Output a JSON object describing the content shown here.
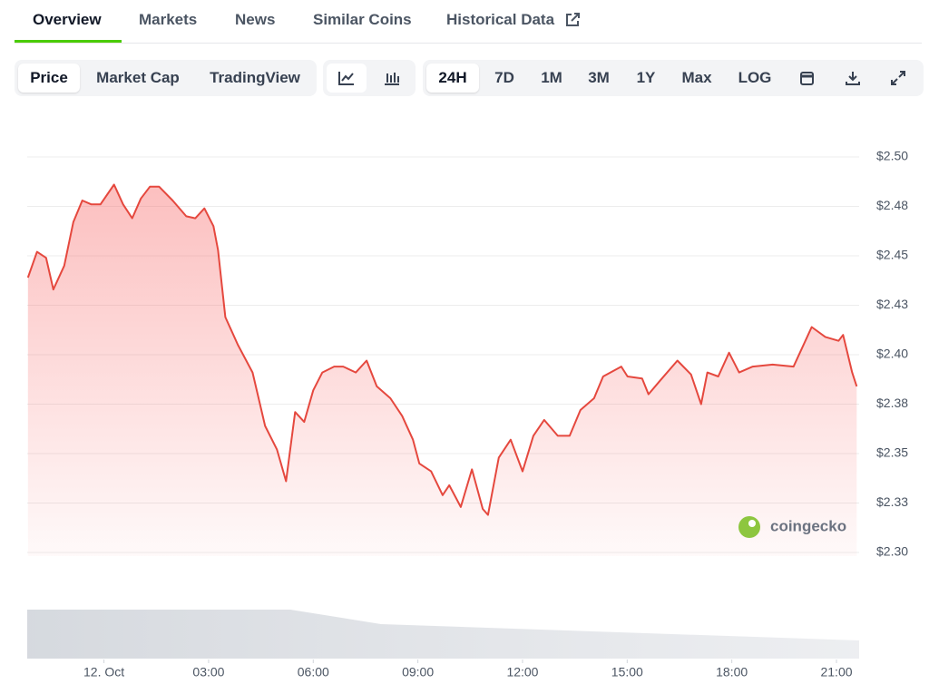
{
  "tabs": [
    {
      "label": "Overview",
      "active": true
    },
    {
      "label": "Markets"
    },
    {
      "label": "News"
    },
    {
      "label": "Similar Coins"
    },
    {
      "label": "Historical Data"
    }
  ],
  "chart_modes": [
    "Price",
    "Market Cap",
    "TradingView"
  ],
  "ranges": [
    "24H",
    "7D",
    "1M",
    "3M",
    "1Y",
    "Max",
    "LOG"
  ],
  "watermark": "coingecko",
  "chart_data": {
    "type": "line",
    "color": "#e5483e",
    "x": [
      -2.18,
      -1.92,
      -1.66,
      -1.45,
      -1.14,
      -0.88,
      -0.62,
      -0.36,
      -0.1,
      0.29,
      0.55,
      0.81,
      1.06,
      1.32,
      1.58,
      1.97,
      2.36,
      2.62,
      2.88,
      3.14,
      3.27,
      3.48,
      3.84,
      4.26,
      4.62,
      4.96,
      5.22,
      5.48,
      5.74,
      6.0,
      6.26,
      6.6,
      6.86,
      7.22,
      7.53,
      7.82,
      8.21,
      8.55,
      8.86,
      9.04,
      9.38,
      9.71,
      9.9,
      10.23,
      10.55,
      10.86,
      11.01,
      11.32,
      11.66,
      12.0,
      12.31,
      12.62,
      13.01,
      13.35,
      13.66,
      14.05,
      14.31,
      14.83,
      15.01,
      15.43,
      15.61,
      15.95,
      16.44,
      16.83,
      17.12,
      17.3,
      17.61,
      17.92,
      18.21,
      18.6,
      19.17,
      19.77,
      20.29,
      20.68,
      21.06,
      21.19,
      21.45,
      21.58
    ],
    "values": [
      2.439,
      2.452,
      2.449,
      2.433,
      2.445,
      2.467,
      2.478,
      2.476,
      2.476,
      2.486,
      2.476,
      2.469,
      2.479,
      2.485,
      2.485,
      2.478,
      2.47,
      2.469,
      2.474,
      2.465,
      2.453,
      2.419,
      2.405,
      2.391,
      2.364,
      2.352,
      2.336,
      2.371,
      2.366,
      2.382,
      2.391,
      2.394,
      2.394,
      2.391,
      2.397,
      2.384,
      2.378,
      2.369,
      2.357,
      2.345,
      2.341,
      2.329,
      2.334,
      2.323,
      2.342,
      2.322,
      2.319,
      2.348,
      2.357,
      2.341,
      2.359,
      2.367,
      2.359,
      2.359,
      2.372,
      2.378,
      2.389,
      2.394,
      2.389,
      2.388,
      2.38,
      2.387,
      2.397,
      2.39,
      2.375,
      2.391,
      2.389,
      2.401,
      2.391,
      2.394,
      2.395,
      2.394,
      2.414,
      2.409,
      2.407,
      2.41,
      2.391,
      2.384
    ],
    "xlim": [
      -2.2,
      21.65
    ],
    "xticks": [
      {
        "value": 0,
        "label": "12. Oct"
      },
      {
        "value": 3,
        "label": "03:00"
      },
      {
        "value": 6,
        "label": "06:00"
      },
      {
        "value": 9,
        "label": "09:00"
      },
      {
        "value": 12,
        "label": "12:00"
      },
      {
        "value": 15,
        "label": "15:00"
      },
      {
        "value": 18,
        "label": "18:00"
      },
      {
        "value": 21,
        "label": "21:00"
      }
    ],
    "ylim": [
      2.3,
      2.5
    ],
    "yticks": [
      {
        "value": 2.3,
        "label": "$2.30"
      },
      {
        "value": 2.325,
        "label": "$2.33"
      },
      {
        "value": 2.35,
        "label": "$2.35"
      },
      {
        "value": 2.375,
        "label": "$2.38"
      },
      {
        "value": 2.4,
        "label": "$2.40"
      },
      {
        "value": 2.425,
        "label": "$2.43"
      },
      {
        "value": 2.45,
        "label": "$2.45"
      },
      {
        "value": 2.475,
        "label": "$2.48"
      },
      {
        "value": 2.5,
        "label": "$2.50"
      }
    ],
    "grid": true
  }
}
